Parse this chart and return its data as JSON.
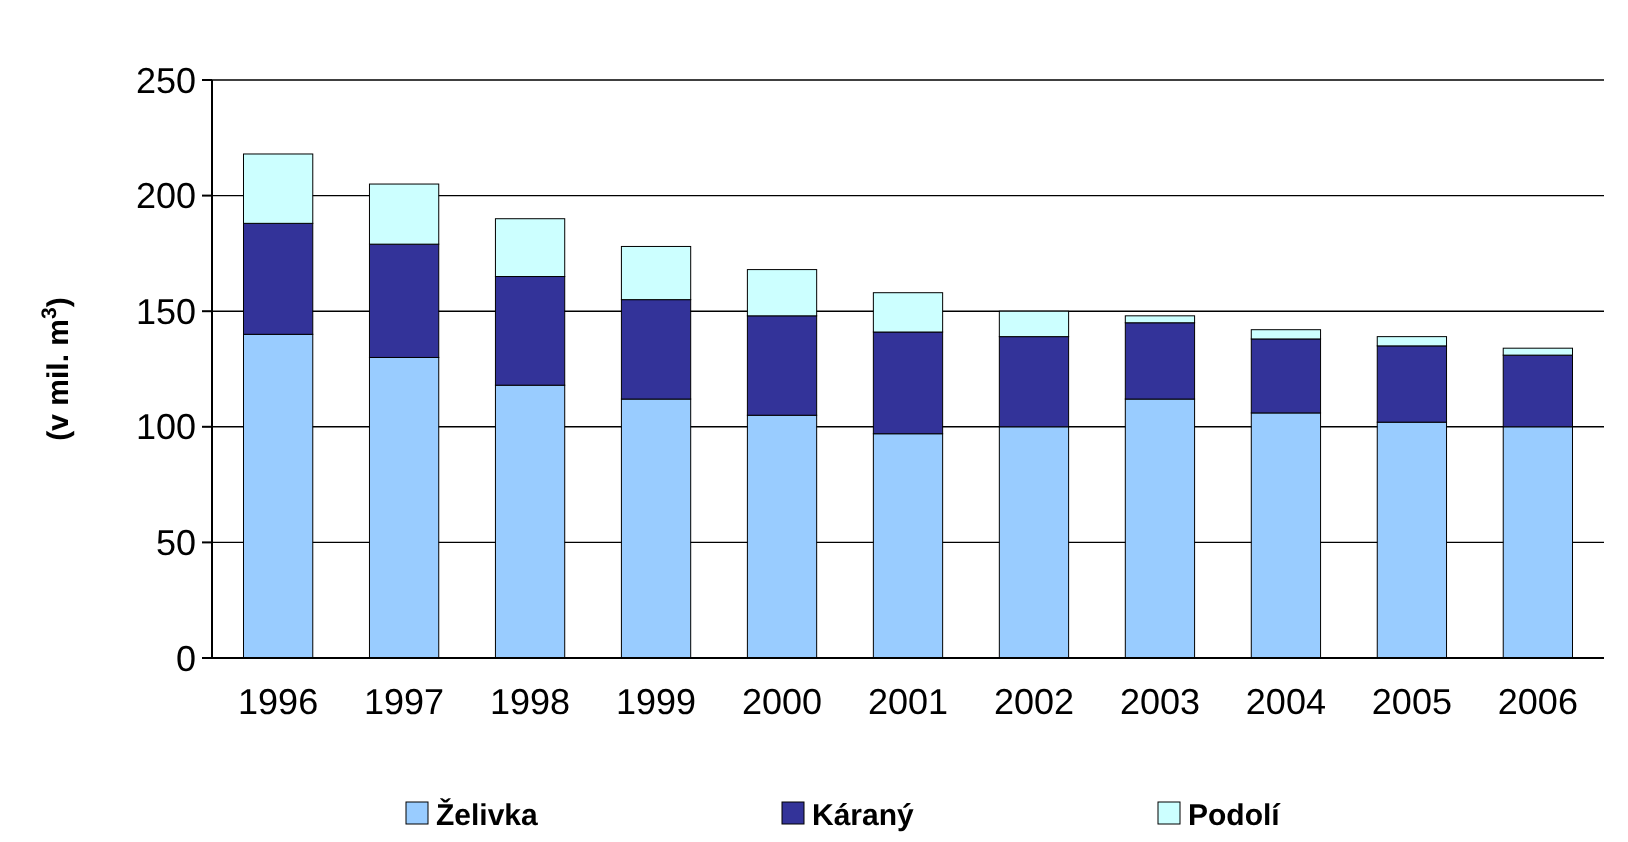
{
  "chart_data": {
    "type": "bar",
    "stacked": true,
    "ylabel": "(v mil. m$^{3}$)",
    "categories": [
      "1996",
      "1997",
      "1998",
      "1999",
      "2000",
      "2001",
      "2002",
      "2003",
      "2004",
      "2005",
      "2006"
    ],
    "series": [
      {
        "name": "Želivka",
        "color": "#99ccff",
        "values": [
          140,
          130,
          118,
          112,
          105,
          97,
          100,
          112,
          106,
          102,
          100
        ]
      },
      {
        "name": "Káraný",
        "color": "#333399",
        "values": [
          48,
          49,
          47,
          43,
          43,
          44,
          39,
          33,
          32,
          33,
          31
        ]
      },
      {
        "name": "Podolí",
        "color": "#ccffff",
        "values": [
          30,
          26,
          25,
          23,
          20,
          17,
          11,
          3,
          4,
          4,
          3
        ]
      }
    ],
    "ylim": [
      0,
      250
    ],
    "yticks": [
      0,
      50,
      100,
      150,
      200,
      250
    ],
    "grid": "y",
    "legend": "bottom"
  }
}
